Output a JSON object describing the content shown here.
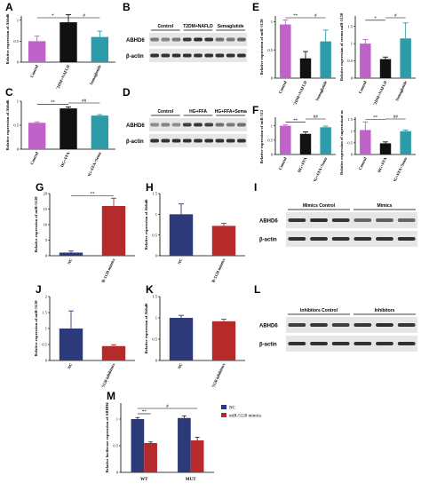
{
  "panel_labels": [
    "A",
    "B",
    "C",
    "D",
    "E",
    "F",
    "G",
    "H",
    "I",
    "J",
    "K",
    "L",
    "M"
  ],
  "colors": {
    "pink": "#c063c8",
    "black": "#111111",
    "teal": "#2e9ca8",
    "red": "#b52a2a",
    "navy": "#2d3a7a",
    "blot_bg": "#e6e6e6",
    "band": "#222222"
  },
  "chart_data": [
    {
      "id": "A",
      "type": "bar",
      "ylabel": "Relative expression of Abhd6",
      "categories": [
        "Control",
        "T2DM+NAFLD",
        "Semaglutide"
      ],
      "values": [
        0.5,
        0.95,
        0.6
      ],
      "errors": [
        0.12,
        0.18,
        0.14
      ],
      "colorKeys": [
        "pink",
        "black",
        "teal"
      ],
      "ylim": [
        0,
        1.1
      ],
      "sig": [
        {
          "a": 0,
          "b": 1,
          "label": "*"
        },
        {
          "a": 1,
          "b": 2,
          "label": "#"
        }
      ]
    },
    {
      "id": "C",
      "type": "bar",
      "ylabel": "Relative expression of Abhd6",
      "categories": [
        "Control",
        "HG+FFA",
        "HG+FFA+Sema"
      ],
      "values": [
        0.55,
        0.85,
        0.7
      ],
      "errors": [
        0.02,
        0.03,
        0.02
      ],
      "colorKeys": [
        "pink",
        "black",
        "teal"
      ],
      "ylim": [
        0,
        1.0
      ],
      "sig": [
        {
          "a": 0,
          "b": 1,
          "label": "**"
        },
        {
          "a": 1,
          "b": 2,
          "label": "##"
        }
      ]
    },
    {
      "id": "E1",
      "type": "bar",
      "ylabel": "Relative expression of miR-5120",
      "categories": [
        "Control",
        "T2DM+NAFLD",
        "Semaglutide"
      ],
      "values": [
        0.95,
        0.35,
        0.65
      ],
      "errors": [
        0.08,
        0.12,
        0.2
      ],
      "colorKeys": [
        "pink",
        "black",
        "teal"
      ],
      "ylim": [
        0,
        1.1
      ],
      "sig": [
        {
          "a": 0,
          "b": 1,
          "label": "**"
        },
        {
          "a": 1,
          "b": 2,
          "label": "#"
        }
      ]
    },
    {
      "id": "E2",
      "type": "bar",
      "ylabel": "Relative expression of serum miR-5120",
      "categories": [
        "Control",
        "T2DM+NAFLD",
        "Semaglutide"
      ],
      "values": [
        1.0,
        0.55,
        1.15
      ],
      "errors": [
        0.12,
        0.06,
        0.45
      ],
      "colorKeys": [
        "pink",
        "black",
        "teal"
      ],
      "ylim": [
        0,
        1.8
      ],
      "sig": [
        {
          "a": 0,
          "b": 1,
          "label": "*"
        },
        {
          "a": 1,
          "b": 2,
          "label": "#"
        }
      ]
    },
    {
      "id": "F1",
      "type": "bar",
      "ylabel": "Relative expression of miR-5120",
      "categories": [
        "Control",
        "HG+FFA",
        "HG+FFA+Sema"
      ],
      "values": [
        1.0,
        0.72,
        0.95
      ],
      "errors": [
        0.03,
        0.07,
        0.04
      ],
      "colorKeys": [
        "pink",
        "black",
        "teal"
      ],
      "ylim": [
        0,
        1.3
      ],
      "sig": [
        {
          "a": 0,
          "b": 1,
          "label": "**"
        },
        {
          "a": 1,
          "b": 2,
          "label": "##"
        }
      ]
    },
    {
      "id": "F2",
      "type": "bar",
      "ylabel": "Relative expression of supernatant miR-5120",
      "categories": [
        "Control",
        "HG+FFA",
        "HG+FFA+Sema"
      ],
      "values": [
        1.05,
        0.48,
        1.0
      ],
      "errors": [
        0.35,
        0.06,
        0.05
      ],
      "colorKeys": [
        "pink",
        "black",
        "teal"
      ],
      "ylim": [
        0,
        1.6
      ],
      "sig": [
        {
          "a": 0,
          "b": 1,
          "label": "**"
        },
        {
          "a": 1,
          "b": 2,
          "label": "##"
        }
      ]
    },
    {
      "id": "G",
      "type": "bar",
      "ylabel": "Relative expression of miR-5120",
      "categories": [
        "NC",
        "miR-5120 mimics"
      ],
      "values": [
        1.0,
        16.0
      ],
      "errors": [
        0.5,
        2.5
      ],
      "colorKeys": [
        "navy",
        "red"
      ],
      "ylim": [
        0,
        20
      ],
      "sig": [
        {
          "a": 0,
          "b": 1,
          "label": "**"
        }
      ]
    },
    {
      "id": "H",
      "type": "bar",
      "ylabel": "Relative expression of Abhd6",
      "categories": [
        "NC",
        "miR-5120 mimics"
      ],
      "values": [
        1.0,
        0.72
      ],
      "errors": [
        0.25,
        0.06
      ],
      "colorKeys": [
        "navy",
        "red"
      ],
      "ylim": [
        0,
        1.5
      ],
      "sig": []
    },
    {
      "id": "J",
      "type": "bar",
      "ylabel": "Relative expression of miR-5120",
      "categories": [
        "NC",
        "miR-5120 inhibitors"
      ],
      "values": [
        1.0,
        0.45
      ],
      "errors": [
        0.55,
        0.04
      ],
      "colorKeys": [
        "navy",
        "red"
      ],
      "ylim": [
        0,
        2.0
      ],
      "sig": []
    },
    {
      "id": "K",
      "type": "bar",
      "ylabel": "Relative expression of Abhd6",
      "categories": [
        "NC",
        "miR-5120 inhibitors"
      ],
      "values": [
        1.0,
        0.92
      ],
      "errors": [
        0.06,
        0.05
      ],
      "colorKeys": [
        "navy",
        "red"
      ],
      "ylim": [
        0,
        1.5
      ],
      "sig": []
    },
    {
      "id": "M",
      "type": "bar",
      "ylabel": "Relative luciferase expression of ABHD6",
      "categories": [
        "WT",
        "MUT"
      ],
      "series": [
        {
          "name": "NC",
          "colorKey": "navy",
          "values": [
            1.0,
            1.02
          ],
          "errors": [
            0.03,
            0.04
          ]
        },
        {
          "name": "miR-5120 mimics",
          "colorKey": "red",
          "values": [
            0.55,
            0.6
          ],
          "errors": [
            0.02,
            0.06
          ]
        }
      ],
      "ylim": [
        0,
        1.3
      ],
      "sig": [
        {
          "label": "**"
        },
        {
          "label": "#"
        }
      ]
    }
  ],
  "blots": {
    "B": {
      "groups": [
        "Control",
        "T2DM+NAFLD",
        "Semaglutide"
      ],
      "rows": [
        "ABHD6",
        "β-actin"
      ],
      "abhd6": [
        0.55,
        0.5,
        0.55,
        0.9,
        0.95,
        0.9,
        0.6,
        0.55,
        0.65
      ]
    },
    "D": {
      "groups": [
        "Control",
        "HG+FFA",
        "HG+FFA+Sema"
      ],
      "rows": [
        "ABHD6",
        "β-actin"
      ],
      "abhd6": [
        0.45,
        0.5,
        0.45,
        0.85,
        0.9,
        0.85,
        0.6,
        0.55,
        0.6
      ]
    },
    "I": {
      "groups": [
        "Mimics Control",
        "Mimics"
      ],
      "rows": [
        "ABHD6",
        "β-actin"
      ],
      "abhd6": [
        0.9,
        0.95,
        0.9,
        0.65,
        0.7,
        0.65
      ]
    },
    "L": {
      "groups": [
        "Inhibitors Control",
        "Inhibitors"
      ],
      "rows": [
        "ABHD6",
        "β-actin"
      ],
      "abhd6": [
        0.85,
        0.9,
        0.85,
        0.9,
        0.95,
        0.9
      ]
    }
  }
}
